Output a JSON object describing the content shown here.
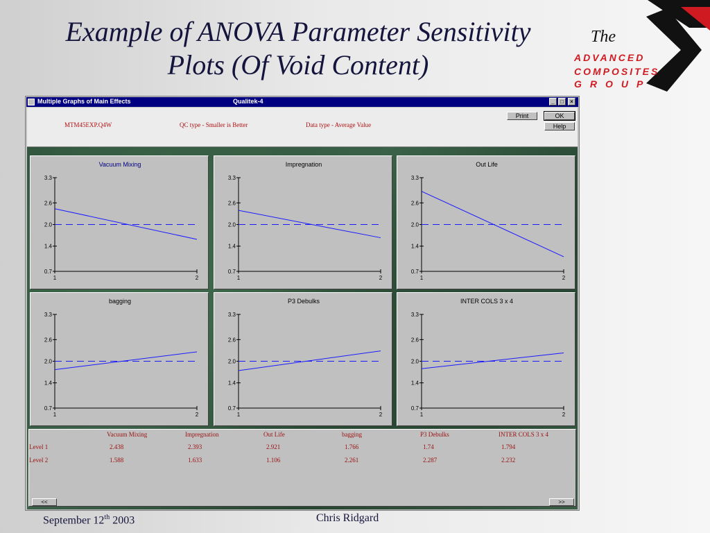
{
  "slide": {
    "title_line1": "Example of ANOVA Parameter Sensitivity",
    "title_line2": "Plots (Of Void Content)",
    "footer_date_prefix": "September 12",
    "footer_date_suffix": "th",
    "footer_date_year": " 2003",
    "footer_author": "Chris Ridgard"
  },
  "logo": {
    "the": "The",
    "line1": "ADVANCED",
    "line2": "COMPOSITES",
    "line3": "GROUP",
    "colors": {
      "red": "#d01a22",
      "black": "#111111"
    }
  },
  "window": {
    "title": "Multiple Graphs of Main Effects",
    "product": "Qualitek-4",
    "controls": {
      "minimize": "_",
      "maximize": "□",
      "close": "×"
    },
    "file": "MTM45EXP.Q4W",
    "qc_type": "QC type - Smaller is Better",
    "data_type": "Data type - Average Value",
    "buttons": {
      "print": "Print",
      "ok": "OK",
      "help": "Help"
    },
    "scroll_left": "<<",
    "scroll_right": ">>"
  },
  "chart_data": [
    {
      "type": "line",
      "title": "Vacuum Mixing",
      "categories": [
        "1",
        "2"
      ],
      "values": [
        2.438,
        1.588
      ],
      "mean": 2.0,
      "ylim": [
        0.7,
        3.3
      ],
      "yticks": [
        "3.3",
        "2.6",
        "2.0",
        "1.4",
        "0.7"
      ]
    },
    {
      "type": "line",
      "title": "Impregnation",
      "categories": [
        "1",
        "2"
      ],
      "values": [
        2.393,
        1.633
      ],
      "mean": 2.0,
      "ylim": [
        0.7,
        3.3
      ],
      "yticks": [
        "3.3",
        "2.6",
        "2.0",
        "1.4",
        "0.7"
      ]
    },
    {
      "type": "line",
      "title": "Out Life",
      "categories": [
        "1",
        "2"
      ],
      "values": [
        2.921,
        1.106
      ],
      "mean": 2.0,
      "ylim": [
        0.7,
        3.3
      ],
      "yticks": [
        "3.3",
        "2.6",
        "2.0",
        "1.4",
        "0.7"
      ]
    },
    {
      "type": "line",
      "title": "bagging",
      "categories": [
        "1",
        "2"
      ],
      "values": [
        1.766,
        2.261
      ],
      "mean": 2.0,
      "ylim": [
        0.7,
        3.3
      ],
      "yticks": [
        "3.3",
        "2.6",
        "2.0",
        "1.4",
        "0.7"
      ]
    },
    {
      "type": "line",
      "title": "P3 Debulks",
      "categories": [
        "1",
        "2"
      ],
      "values": [
        1.74,
        2.287
      ],
      "mean": 2.0,
      "ylim": [
        0.7,
        3.3
      ],
      "yticks": [
        "3.3",
        "2.6",
        "2.0",
        "1.4",
        "0.7"
      ]
    },
    {
      "type": "line",
      "title": "INTER COLS 3 x 4",
      "categories": [
        "1",
        "2"
      ],
      "values": [
        1.794,
        2.232
      ],
      "mean": 2.0,
      "ylim": [
        0.7,
        3.3
      ],
      "yticks": [
        "3.3",
        "2.6",
        "2.0",
        "1.4",
        "0.7"
      ]
    }
  ],
  "table": {
    "headers": [
      "Vacuum Mixing",
      "Impregnation",
      "Out Life",
      "bagging",
      "P3 Debulks",
      "INTER COLS 3 x 4"
    ],
    "rows": [
      {
        "label": "Level 1",
        "values": [
          "2.438",
          "2.393",
          "2.921",
          "1.766",
          "1.74",
          "1.794"
        ]
      },
      {
        "label": "Level 2",
        "values": [
          "1.588",
          "1.633",
          "1.106",
          "2.261",
          "2.287",
          "2.232"
        ]
      }
    ]
  },
  "colors": {
    "title_bar": "#000080",
    "series_line": "#1a1aff",
    "table_text": "#9a1010",
    "marble": "#2c4e38"
  }
}
